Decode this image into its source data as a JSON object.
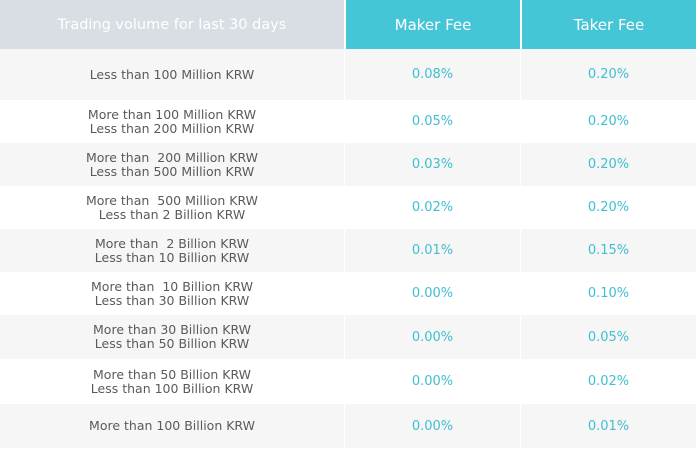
{
  "table": {
    "headers": {
      "volume": "Trading volume for last 30 days",
      "maker": "Maker Fee",
      "taker": "Taker Fee"
    },
    "rows": [
      {
        "volume": [
          "Less than 100 Million KRW"
        ],
        "maker": "0.08%",
        "taker": "0.20%"
      },
      {
        "volume": [
          "More than 100 Million KRW",
          "Less than 200 Million KRW"
        ],
        "maker": "0.05%",
        "taker": "0.20%"
      },
      {
        "volume": [
          "More than  200 Million KRW",
          "Less than 500 Million KRW"
        ],
        "maker": "0.03%",
        "taker": "0.20%"
      },
      {
        "volume": [
          "More than  500 Million KRW",
          "Less than 2 Billion KRW"
        ],
        "maker": "0.02%",
        "taker": "0.20%"
      },
      {
        "volume": [
          "More than  2 Billion KRW",
          "Less than 10 Billion KRW"
        ],
        "maker": "0.01%",
        "taker": "0.15%"
      },
      {
        "volume": [
          "More than  10 Billion KRW",
          "Less than 30 Billion KRW"
        ],
        "maker": "0.00%",
        "taker": "0.10%"
      },
      {
        "volume": [
          "More than 30 Billion KRW",
          "Less than 50 Billion KRW"
        ],
        "maker": "0.00%",
        "taker": "0.05%"
      },
      {
        "volume": [
          "More than 50 Billion KRW",
          "Less than 100 Billion KRW"
        ],
        "maker": "0.00%",
        "taker": "0.02%"
      },
      {
        "volume": [
          "More than 100 Billion KRW"
        ],
        "maker": "0.00%",
        "taker": "0.01%"
      }
    ]
  },
  "colors": {
    "header_accent": "#45c6d6",
    "header_muted": "#d9dee4",
    "fee_text": "#3ebfd1",
    "volume_text": "#5a5a5a",
    "row_alt": "#f6f6f6"
  }
}
